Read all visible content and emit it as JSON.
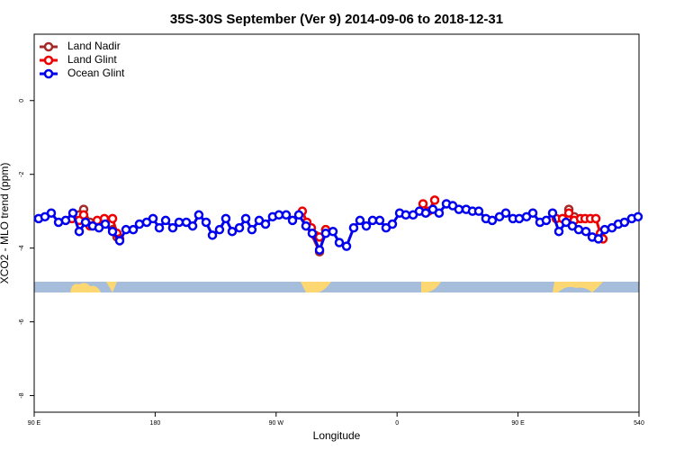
{
  "chart_data": {
    "type": "line",
    "title": "35S-30S September (Ver 9)   2014-09-06 to 2018-12-31",
    "xlabel": "Longitude",
    "ylabel": "XCO2 - MLO trend (ppm)",
    "xlim": [
      90,
      540
    ],
    "ylim": [
      -8.45,
      1.8
    ],
    "xticks": [
      {
        "value": 90,
        "label": "90 E"
      },
      180,
      {
        "value": 270,
        "label": "90 W"
      },
      {
        "value": 360,
        "label": "0"
      },
      {
        "value": 450,
        "label": "90 E"
      },
      540
    ],
    "yticks": [
      0,
      -2,
      -4,
      -6,
      -8
    ],
    "legend": "upper left",
    "series": [
      {
        "name": "Land Nadir",
        "color": "#a52a2a",
        "x": [
          123.5,
          126.8,
          131.5,
          null,
          148.3,
          151.6,
          null,
          292.9,
          302.3,
          306.9,
          null,
          487.8,
          491.8,
          null,
          511.3
        ],
        "values": [
          -3.1,
          -2.95,
          -3.3,
          null,
          -3.5,
          -3.7,
          null,
          -3.35,
          -4.1,
          -3.5,
          null,
          -2.95,
          -3.15,
          null,
          -3.7
        ]
      },
      {
        "name": "Land Glint",
        "color": "#ee0000",
        "x": [
          118.1,
          123.5,
          126.8,
          131.5,
          136.9,
          142.2,
          148.3,
          151.6,
          153.6,
          null,
          289.5,
          292.9,
          296.2,
          298.9,
          302.3,
          306.9,
          null,
          379.3,
          383.3,
          388.0,
          null,
          478.4,
          483.1,
          487.8,
          491.8,
          496.5,
          499.9,
          503.9,
          507.9,
          511.3,
          513.2
        ],
        "values": [
          -3.2,
          -3.25,
          -3.1,
          -3.4,
          -3.25,
          -3.2,
          -3.2,
          -3.6,
          -3.75,
          null,
          -3.0,
          -3.3,
          -3.45,
          -3.65,
          -3.7,
          -3.5,
          null,
          -2.8,
          -3.0,
          -2.7,
          null,
          -3.2,
          -3.2,
          -3.05,
          -3.25,
          -3.2,
          -3.2,
          -3.2,
          -3.2,
          -3.6,
          -3.75
        ]
      },
      {
        "name": "Ocean Glint",
        "color": "#0000ee",
        "x": [
          93.3,
          98.0,
          102.7,
          108.1,
          113.4,
          118.8,
          123.5,
          128.2,
          133.5,
          138.2,
          142.9,
          148.3,
          153.6,
          158.3,
          163.7,
          168.3,
          173.7,
          178.4,
          183.1,
          187.8,
          193.1,
          197.8,
          203.2,
          207.9,
          212.5,
          217.9,
          222.6,
          227.9,
          232.6,
          237.3,
          242.7,
          247.4,
          252.0,
          257.4,
          262.1,
          267.4,
          272.1,
          277.5,
          282.2,
          286.9,
          292.2,
          296.9,
          302.3,
          306.9,
          312.3,
          317.0,
          322.4,
          327.7,
          332.4,
          337.1,
          341.8,
          347.1,
          351.8,
          356.5,
          361.9,
          366.5,
          371.9,
          376.6,
          381.3,
          386.6,
          391.3,
          396.7,
          401.4,
          406.0,
          411.4,
          416.1,
          420.8,
          426.1,
          430.8,
          436.2,
          440.9,
          446.2,
          450.9,
          456.3,
          461.0,
          466.3,
          471.0,
          475.7,
          480.4,
          485.7,
          490.4,
          495.1,
          500.5,
          505.2,
          509.8,
          514.5,
          519.9,
          524.6,
          529.2,
          534.6,
          539.3
        ],
        "values": [
          -3.2,
          -3.15,
          -3.05,
          -3.3,
          -3.25,
          -3.05,
          -3.55,
          -3.3,
          -3.4,
          -3.45,
          -3.35,
          -3.55,
          -3.8,
          -3.5,
          -3.5,
          -3.35,
          -3.3,
          -3.2,
          -3.45,
          -3.25,
          -3.45,
          -3.3,
          -3.3,
          -3.4,
          -3.1,
          -3.3,
          -3.65,
          -3.5,
          -3.2,
          -3.55,
          -3.45,
          -3.2,
          -3.5,
          -3.25,
          -3.35,
          -3.15,
          -3.1,
          -3.1,
          -3.25,
          -3.1,
          -3.4,
          -3.6,
          -4.05,
          -3.6,
          -3.55,
          -3.85,
          -3.95,
          -3.45,
          -3.25,
          -3.4,
          -3.25,
          -3.25,
          -3.45,
          -3.35,
          -3.05,
          -3.1,
          -3.1,
          -3.0,
          -3.05,
          -2.95,
          -3.05,
          -2.8,
          -2.85,
          -2.95,
          -2.95,
          -3.0,
          -3.0,
          -3.2,
          -3.25,
          -3.15,
          -3.05,
          -3.2,
          -3.2,
          -3.15,
          -3.05,
          -3.3,
          -3.25,
          -3.05,
          -3.55,
          -3.3,
          -3.4,
          -3.5,
          -3.55,
          -3.7,
          -3.75,
          -3.5,
          -3.45,
          -3.35,
          -3.3,
          -3.2,
          -3.15
        ]
      }
    ]
  }
}
